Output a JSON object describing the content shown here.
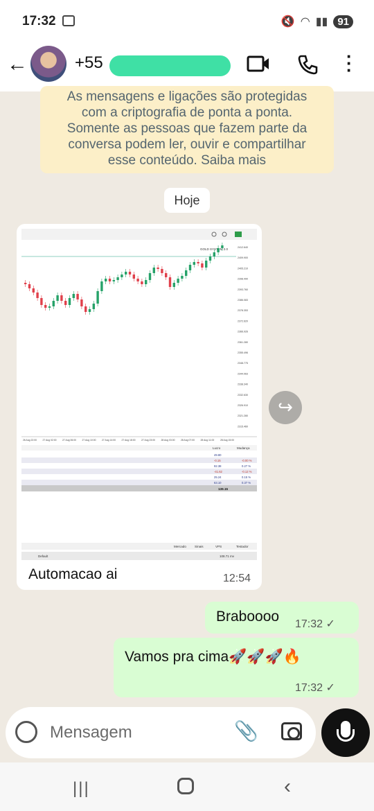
{
  "status_bar": {
    "time": "17:32",
    "battery": "91"
  },
  "header": {
    "contact": "+55",
    "icons": [
      "back-arrow-icon",
      "video-call-icon",
      "phone-icon",
      "more-icon"
    ]
  },
  "encryption_notice": {
    "lines": [
      "As mensagens e ligações são protegidas",
      "com a criptografia de ponta a ponta.",
      "Somente as pessoas que fazem parte da",
      "conversa podem ler, ouvir e compartilhar",
      "esse conteúdo. Saiba mais"
    ]
  },
  "date_divider": "Hoje",
  "messages": [
    {
      "type": "image",
      "direction": "in",
      "caption": "Automacao ai",
      "time": "12:54",
      "screenshot": {
        "chart_title": "GOLD SYSTEM 2.0",
        "price_labels": [
          "2412.640",
          "2409.900",
          "2405.210",
          "2398.490",
          "2393.760",
          "2386.083",
          "2378.353",
          "2372.620",
          "2366.926",
          "2361.280",
          "2355.496",
          "2348.775",
          "2344.063",
          "2338.340",
          "2332.630",
          "2326.910",
          "2321.280",
          "2315.460"
        ],
        "time_labels": [
          "26 Aug 22:00",
          "27 Aug 02:00",
          "27 Aug 06:00",
          "27 Aug 10:00",
          "27 Aug 14:00",
          "27 Aug 18:00",
          "27 Aug 23:00",
          "28 Aug 03:00",
          "28 Aug 07:00",
          "28 Aug 11:00",
          "28 Aug 15:00"
        ],
        "table_headers": [
          "Lucro",
          "Mudança"
        ],
        "table_rows": [
          {
            "profit": "49.80",
            "change": ""
          },
          {
            "profit": "-0.15",
            "change": "-0.00 %"
          },
          {
            "profit": "92.38",
            "change": "0.27 %"
          },
          {
            "profit": "-41.62",
            "change": "-0.12 %"
          },
          {
            "profit": "25.24",
            "change": "0.15 %"
          },
          {
            "profit": "63.10",
            "change": "0.37 %"
          }
        ],
        "table_total": "139.15",
        "tabs": [
          "Mercado",
          "Sinais",
          "VPS",
          "Testador"
        ],
        "status_left": "Default",
        "status_right": "108.71 mv"
      }
    },
    {
      "type": "text",
      "direction": "out",
      "text": "Braboooo",
      "time": "17:32"
    },
    {
      "type": "text",
      "direction": "out",
      "text": "Vamos pra cima🚀🚀🚀🔥",
      "time": "17:32"
    }
  ],
  "composer": {
    "placeholder": "Mensagem"
  }
}
